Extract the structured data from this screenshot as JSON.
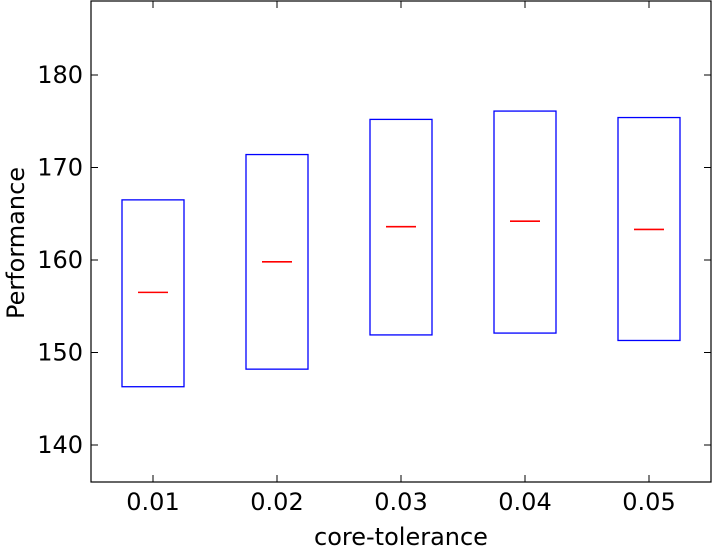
{
  "chart_data": {
    "type": "box",
    "title": "",
    "xlabel": "core-tolerance",
    "ylabel": "Performance",
    "categories": [
      "0.01",
      "0.02",
      "0.03",
      "0.04",
      "0.05"
    ],
    "boxes": [
      {
        "q1": 146.3,
        "median": 156.5,
        "q3": 166.5
      },
      {
        "q1": 148.2,
        "median": 159.8,
        "q3": 171.4
      },
      {
        "q1": 151.9,
        "median": 163.6,
        "q3": 175.2
      },
      {
        "q1": 152.1,
        "median": 164.2,
        "q3": 176.1
      },
      {
        "q1": 151.3,
        "median": 163.3,
        "q3": 175.4
      }
    ],
    "ylim": [
      136,
      188
    ],
    "yticks": [
      140,
      150,
      160,
      170,
      180
    ],
    "grid": false,
    "colors": {
      "box": "#0000ff",
      "median": "#ff0000",
      "axes": "#000000"
    }
  }
}
